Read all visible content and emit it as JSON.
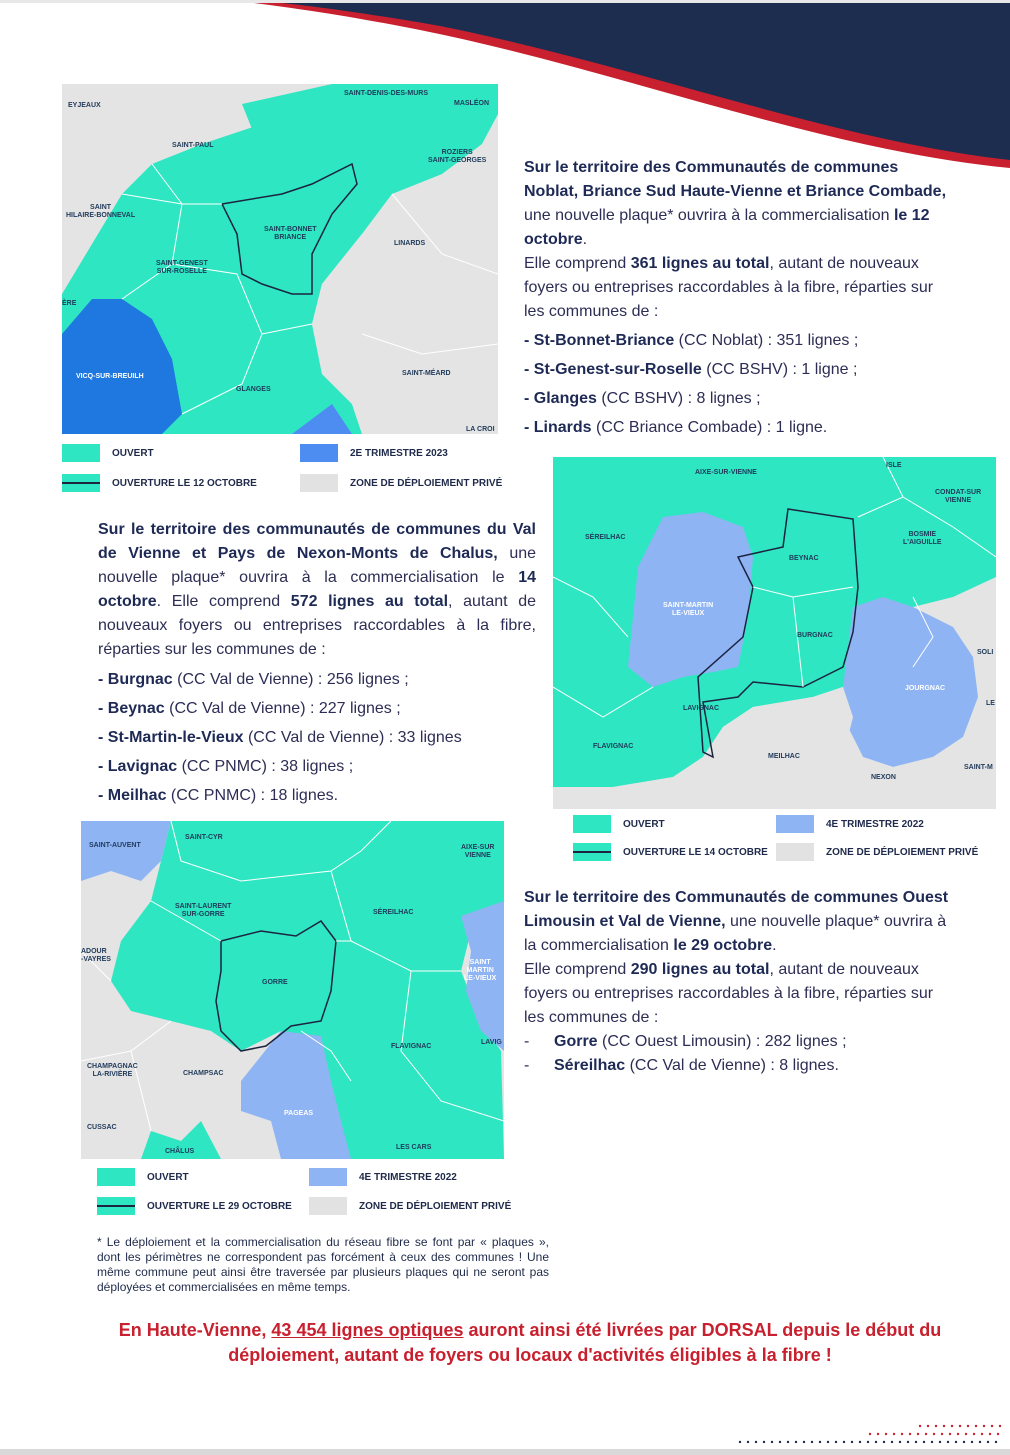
{
  "colors": {
    "navy": "#1c2d50",
    "red": "#c8202e",
    "open_green": "#2fe6c2",
    "blue_2023": "#4d8df2",
    "blue_2022": "#8fb4f4",
    "private_grey": "#e2e2e2"
  },
  "map1": {
    "places": {
      "eyjeaux": "EYJEAUX",
      "saint_denis": "SAINT-DENIS-DES-MURS",
      "masleon": "MASLÉON",
      "saint_paul": "SAINT-PAUL",
      "roziers_1": "ROZIERS",
      "roziers_2": "SAINT-GEORGES",
      "st_hilaire_1": "SAINT",
      "st_hilaire_2": "HILAIRE-BONNEVAL",
      "st_bonnet_1": "SAINT-BONNET",
      "st_bonnet_2": "BRIANCE",
      "linards": "LINARDS",
      "st_genest_1": "SAINT-GENEST",
      "st_genest_2": "SUR-ROSELLE",
      "ere": "ÈRE",
      "vicq": "VICQ-SUR-BREUILH",
      "st_meard": "SAINT-MÉARD",
      "glanges": "GLANGES",
      "la_croi": "LA CROI"
    },
    "legend": {
      "open": "OUVERT",
      "opening": "OUVERTURE LE 12 OCTOBRE",
      "quarter": "2E TRIMESTRE 2023",
      "private": "ZONE DE DÉPLOIEMENT PRIVÉ"
    }
  },
  "block1": {
    "intro_bold": "Sur le territoire des Communautés de communes Noblat, Briance Sud Haute-Vienne et Briance Combade,",
    "intro_rest": " une nouvelle plaque* ouvrira à la commercialisation ",
    "date": "le 12 octobre",
    "sentence2_a": "Elle comprend ",
    "total": "361 lignes au total",
    "sentence2_b": ", autant de nouveaux foyers ou entreprises raccordables à la fibre, réparties sur les communes de :",
    "items": [
      {
        "name": "- St-Bonnet-Briance",
        "detail": " (CC Noblat) : 351 lignes ;"
      },
      {
        "name": "- St-Genest-sur-Roselle",
        "detail": " (CC BSHV) : 1 ligne ;"
      },
      {
        "name": "- Glanges",
        "detail": " (CC BSHV) : 8 lignes ;"
      },
      {
        "name": "- Linards",
        "detail": " (CC Briance Combade) : 1 ligne."
      }
    ]
  },
  "block2": {
    "intro_bold": "Sur le territoire des communautés de communes du Val de Vienne et Pays de Nexon-Monts de Chalus,",
    "intro_rest": " une nouvelle plaque* ouvrira à la commercialisation le ",
    "date": "14 octobre",
    "sentence2_a": ". Elle comprend ",
    "total": "572 lignes au total",
    "sentence2_b": ", autant de nouveaux foyers ou entreprises raccordables à la fibre, réparties sur les communes de :",
    "items": [
      {
        "name": "- Burgnac",
        "detail": " (CC Val de Vienne) : 256 lignes ;"
      },
      {
        "name": "- Beynac",
        "detail": " (CC Val de Vienne) : 227 lignes ;"
      },
      {
        "name": "- St-Martin-le-Vieux",
        "detail": " (CC Val de Vienne) : 33 lignes"
      },
      {
        "name": "- Lavignac",
        "detail": " (CC PNMC) : 38 lignes ;"
      },
      {
        "name": "- Meilhac",
        "detail": " (CC PNMC) : 18 lignes."
      }
    ]
  },
  "map2": {
    "places": {
      "aixe": "AIXE-SUR-VIENNE",
      "isle": "ISLE",
      "condat_1": "CONDAT-SUR",
      "condat_2": "VIENNE",
      "sereilhac": "SÉREILHAC",
      "bosmie_1": "BOSMIE",
      "bosmie_2": "L'AIGUILLE",
      "beynac": "BEYNAC",
      "stmartin_1": "SAINT-MARTIN",
      "stmartin_2": "LE-VIEUX",
      "burgnac": "BURGNAC",
      "soli": "SOLI",
      "jourgnac": "JOURGNAC",
      "le": "LE",
      "lavignac": "LAVIGNAC",
      "flavignac": "FLAVIGNAC",
      "meilhac": "MEILHAC",
      "nexon": "NEXON",
      "saint_m": "SAINT-M"
    },
    "legend": {
      "open": "OUVERT",
      "opening": "OUVERTURE LE 14 OCTOBRE",
      "quarter": "4E TRIMESTRE 2022",
      "private": "ZONE DE DÉPLOIEMENT PRIVÉ"
    }
  },
  "map3": {
    "places": {
      "saint_auvent": "SAINT-AUVENT",
      "saint_cyr": "SAINT-CYR",
      "aixe_1": "AIXE-SUR",
      "aixe_2": "VIENNE",
      "st_laurent_1": "SAINT-LAURENT",
      "st_laurent_2": "SUR-GORRE",
      "sereilhac": "SÉREILHAC",
      "adour_1": "ADOUR",
      "adour_2": "-VAYRES",
      "st_martin_1": "SAINT",
      "st_martin_2": "MARTIN",
      "st_martin_3": "LE-VIEUX",
      "gorre": "GORRE",
      "lavig": "LAVIG",
      "flavignac": "FLAVIGNAC",
      "champagnac_1": "CHAMPAGNAC",
      "champagnac_2": "LA-RIVIÈRE",
      "champsac": "CHAMPSAC",
      "pageas": "PAGEAS",
      "cussac": "CUSSAC",
      "chalus": "CHÂLUS",
      "les_cars": "LES CARS"
    },
    "legend": {
      "open": "OUVERT",
      "opening": "OUVERTURE LE 29 OCTOBRE",
      "quarter": "4E TRIMESTRE 2022",
      "private": "ZONE DE DÉPLOIEMENT PRIVÉ"
    }
  },
  "block3": {
    "intro_bold": "Sur le territoire des Communautés de communes Ouest Limousin et Val de Vienne,",
    "intro_rest": " une nouvelle plaque* ouvrira à la commercialisation ",
    "date": "le 29 octobre",
    "sentence2_a": "Elle comprend ",
    "total": "290 lignes au total",
    "sentence2_b": ", autant de nouveaux foyers ou entreprises raccordables à la fibre, réparties sur les communes de :",
    "items": [
      {
        "dash": "-",
        "name": "Gorre",
        "detail": " (CC Ouest Limousin) : 282 lignes ;"
      },
      {
        "dash": "-",
        "name": "Séreilhac",
        "detail": " (CC Val de Vienne) : 8 lignes."
      }
    ]
  },
  "footnote": "* Le déploiement et la commercialisation du réseau fibre se font par « plaques », dont les périmètres ne correspondent pas forcément à ceux des communes ! Une même commune peut ainsi être traversée par plusieurs plaques qui ne seront pas déployées et commercialisées en même temps.",
  "final": {
    "part1": "En Haute-Vienne, ",
    "highlight": "43 454 lignes optiques",
    "part2": " auront ainsi été livrées par DORSAL depuis le début du déploiement, autant de foyers ou locaux d'activités éligibles à la fibre !"
  }
}
